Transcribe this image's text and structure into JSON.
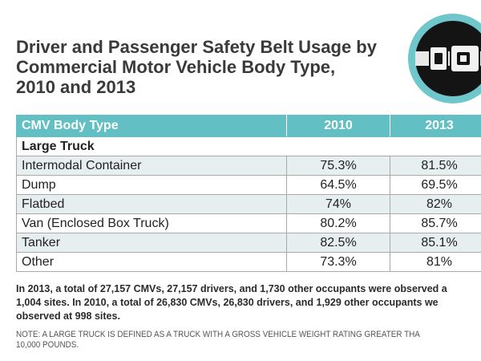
{
  "title_lines": [
    "Driver and Passenger Safety Belt Usage by",
    "Commercial Motor Vehicle Body Type,",
    "2010 and 2013"
  ],
  "icon": "seat-belt-buckle-icon",
  "colors": {
    "header_bg": "#62bfc4",
    "icon_ring": "#6fc7cb",
    "shaded_row": "#e6eef0"
  },
  "table": {
    "headers": [
      "CMV Body Type",
      "2010",
      "2013"
    ],
    "group_label": "Large Truck",
    "rows": [
      {
        "type": "Intermodal Container",
        "y2010": "75.3%",
        "y2013": "81.5%"
      },
      {
        "type": "Dump",
        "y2010": "64.5%",
        "y2013": "69.5%"
      },
      {
        "type": "Flatbed",
        "y2010": "74%",
        "y2013": "82%"
      },
      {
        "type": "Van (Enclosed Box Truck)",
        "y2010": "80.2%",
        "y2013": "85.7%"
      },
      {
        "type": "Tanker",
        "y2010": "82.5%",
        "y2013": "85.1%"
      },
      {
        "type": "Other",
        "y2010": "73.3%",
        "y2013": "81%"
      }
    ]
  },
  "summary_lines": [
    "In 2013, a total of 27,157 CMVs, 27,157 drivers, and 1,730 other occupants were observed a",
    "1,004 sites. In 2010, a total of 26,830 CMVs, 26,830 drivers, and 1,929 other occupants we",
    "observed at 998 sites."
  ],
  "note_lines": [
    "NOTE: A LARGE TRUCK IS DEFINED AS A TRUCK WITH A GROSS VEHICLE WEIGHT RATING GREATER THA",
    "10,000 POUNDS."
  ]
}
